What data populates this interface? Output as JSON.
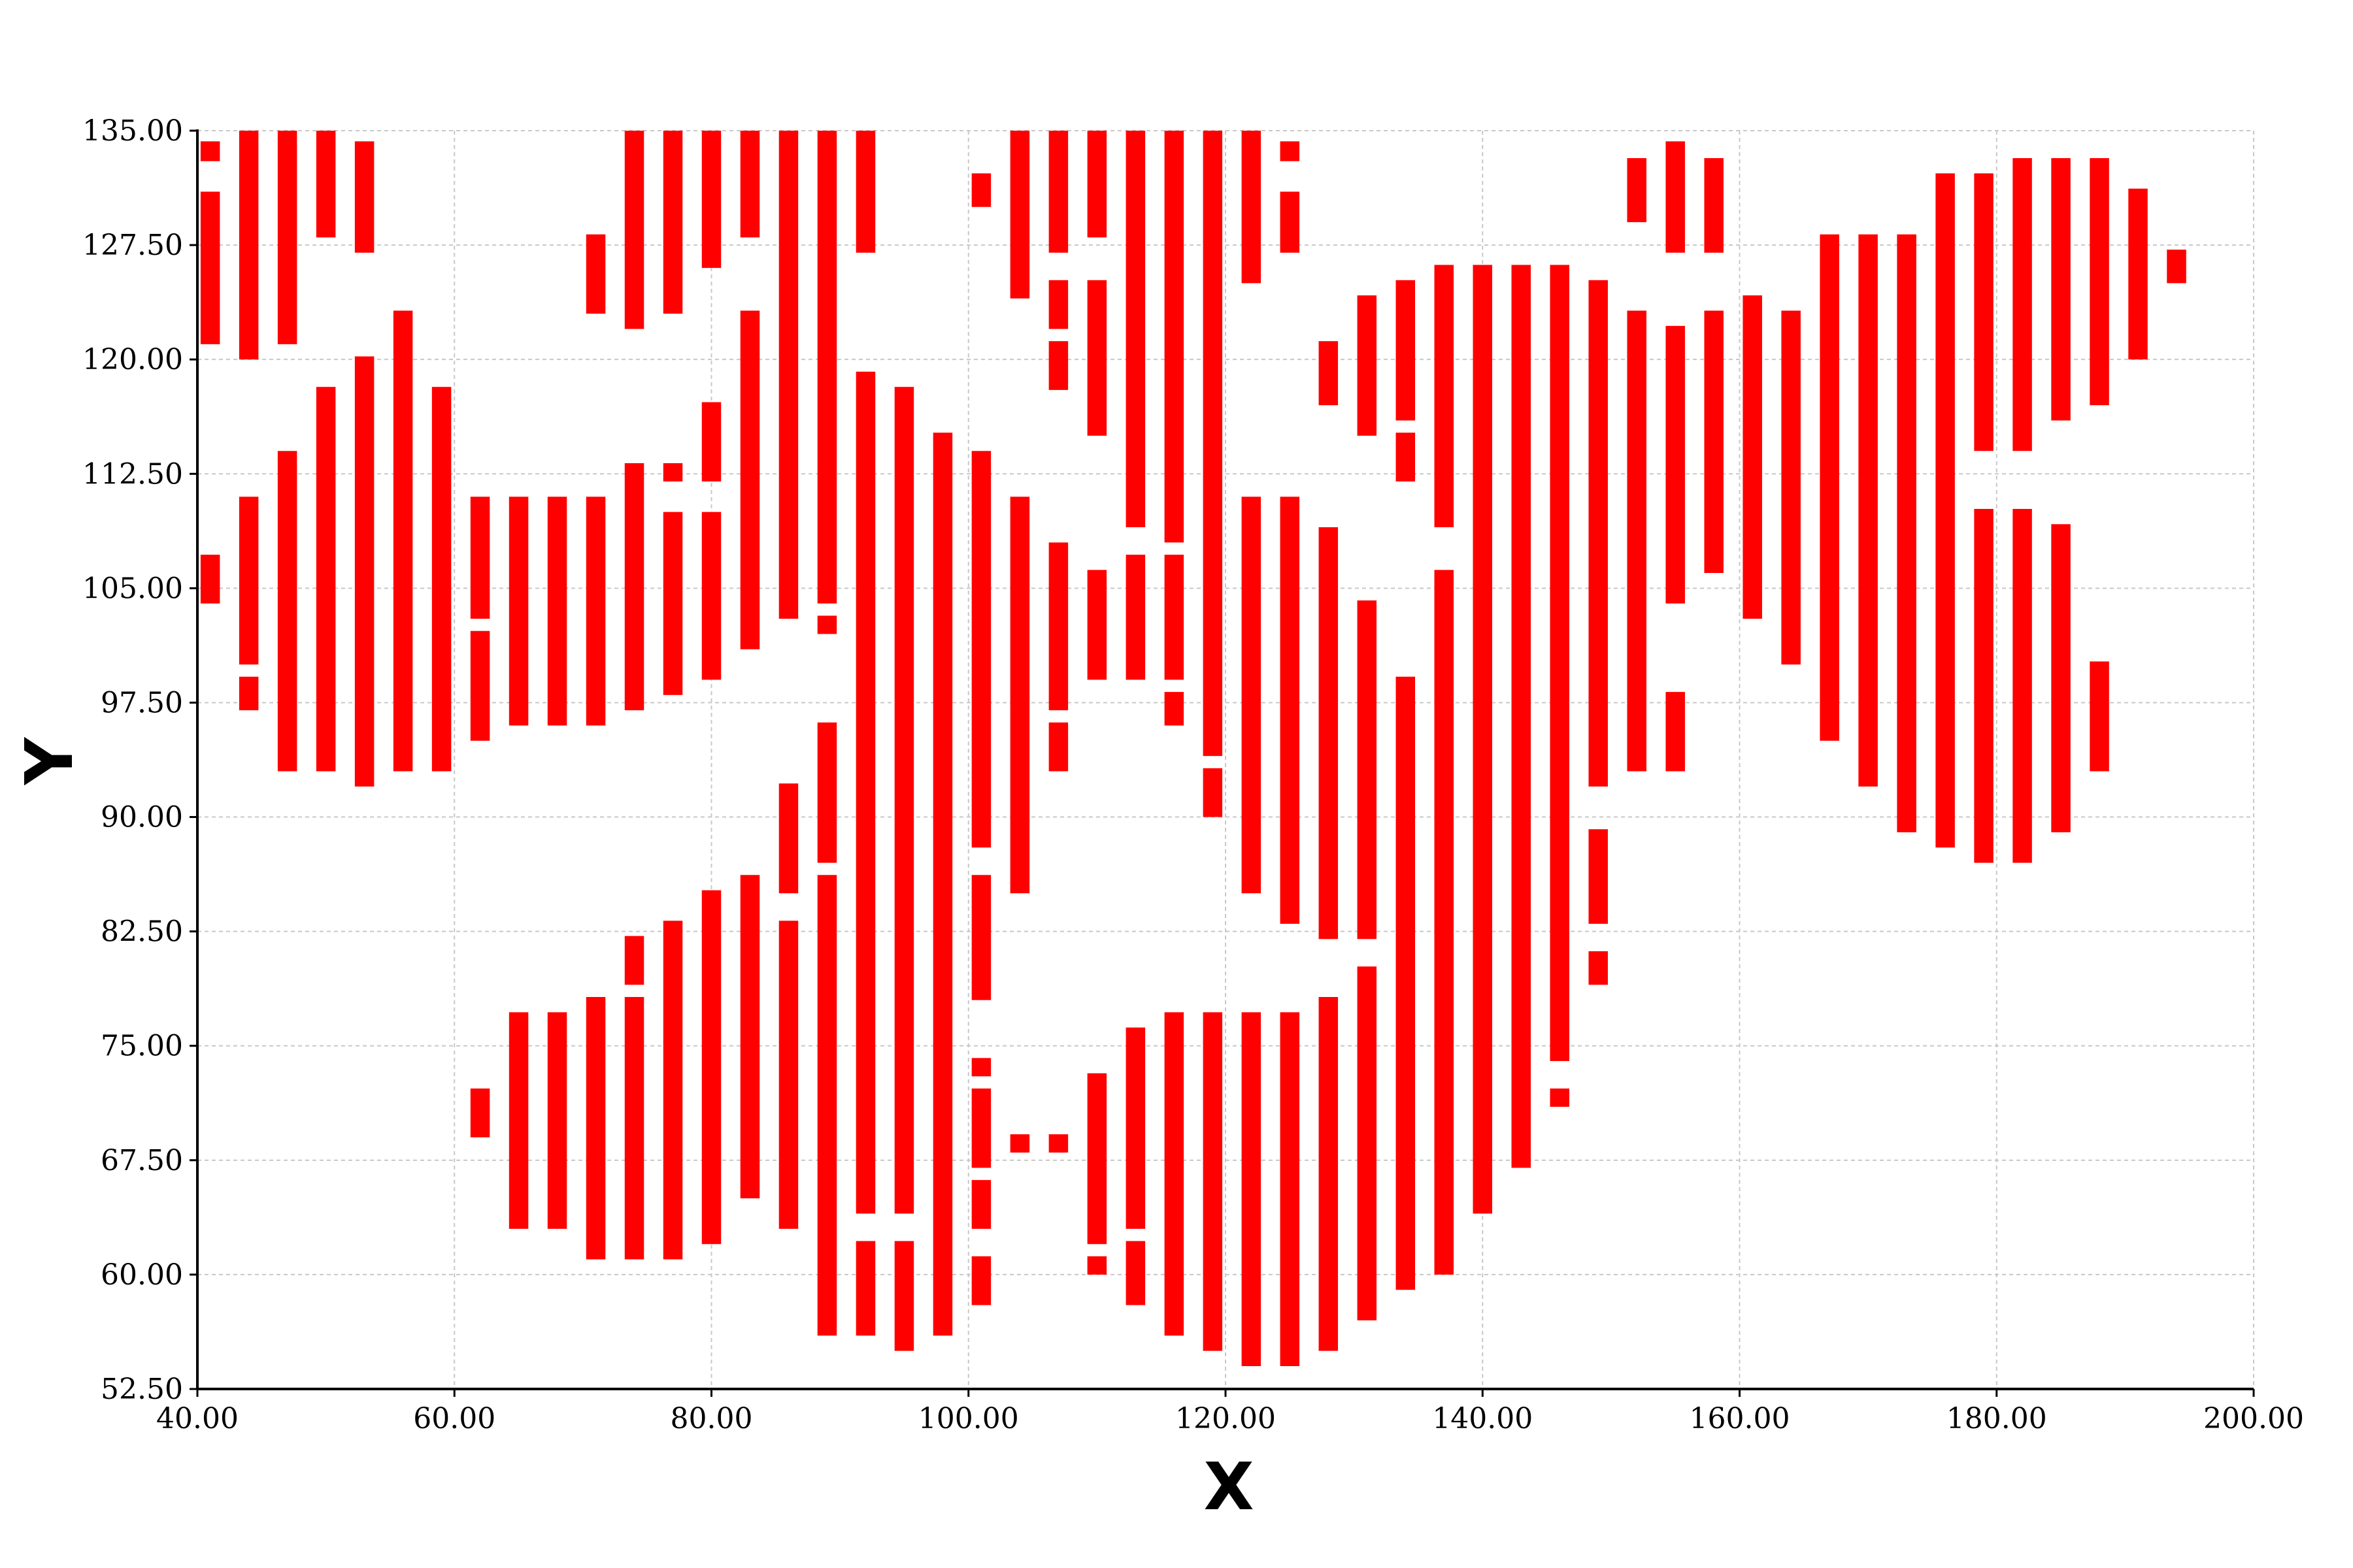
{
  "chart_data": {
    "type": "bar",
    "subtype": "floating-vertical-ranges",
    "title": "",
    "xlabel": "X",
    "ylabel": "Y",
    "xlim": [
      40,
      200
    ],
    "ylim": [
      52.5,
      135
    ],
    "x_ticks": [
      40,
      60,
      80,
      100,
      120,
      140,
      160,
      180,
      200
    ],
    "x_tick_labels": [
      "40.00",
      "60.00",
      "80.00",
      "100.00",
      "120.00",
      "140.00",
      "160.00",
      "180.00",
      "200.00"
    ],
    "y_ticks": [
      52.5,
      60,
      67.5,
      75,
      82.5,
      90,
      97.5,
      105,
      112.5,
      120,
      127.5,
      135
    ],
    "y_tick_labels": [
      "52.50",
      "60.00",
      "67.50",
      "75.00",
      "82.50",
      "90.00",
      "97.50",
      "105.00",
      "112.50",
      "120.00",
      "127.50",
      "135.00"
    ],
    "grid": true,
    "legend": "none",
    "color": "#ff0000",
    "bar_width_x": 1.5,
    "series": [
      {
        "values": [
          [
            41,
            133,
            134.3
          ],
          [
            41,
            121,
            131
          ],
          [
            41,
            104,
            107.2
          ],
          [
            44,
            120,
            135
          ],
          [
            44,
            100,
            111
          ],
          [
            44,
            97,
            99.2
          ],
          [
            47,
            121,
            135
          ],
          [
            47,
            93,
            114
          ],
          [
            50,
            128,
            135
          ],
          [
            50,
            93,
            118.2
          ],
          [
            53,
            127,
            134.3
          ],
          [
            53,
            92,
            120.2
          ],
          [
            56,
            93,
            123.2
          ],
          [
            59,
            93,
            118.2
          ],
          [
            62,
            103,
            111
          ],
          [
            62,
            95,
            102.2
          ],
          [
            62,
            69,
            72.2
          ],
          [
            65,
            96,
            111
          ],
          [
            65,
            63,
            77.2
          ],
          [
            68,
            96,
            111
          ],
          [
            68,
            63,
            77.2
          ],
          [
            71,
            123,
            128.2
          ],
          [
            71,
            96,
            111
          ],
          [
            71,
            61,
            78.2
          ],
          [
            74,
            122,
            135
          ],
          [
            74,
            97,
            113.2
          ],
          [
            74,
            79,
            82.2
          ],
          [
            74,
            61,
            78.2
          ],
          [
            77,
            123,
            135
          ],
          [
            77,
            112,
            113.2
          ],
          [
            77,
            98,
            110
          ],
          [
            77,
            61,
            83.2
          ],
          [
            80,
            126,
            135
          ],
          [
            80,
            112,
            117.2
          ],
          [
            80,
            99,
            110
          ],
          [
            80,
            62,
            85.2
          ],
          [
            83,
            128,
            135
          ],
          [
            83,
            101,
            123.2
          ],
          [
            83,
            65,
            86.2
          ],
          [
            86,
            103,
            135
          ],
          [
            86,
            85,
            92.2
          ],
          [
            86,
            63,
            83.2
          ],
          [
            89,
            104,
            135
          ],
          [
            89,
            102,
            103.2
          ],
          [
            89,
            87,
            96.2
          ],
          [
            89,
            56,
            86.2
          ],
          [
            92,
            127,
            135
          ],
          [
            92,
            64,
            119.2
          ],
          [
            92,
            56,
            62.2
          ],
          [
            95,
            64,
            118.2
          ],
          [
            95,
            55,
            62.2
          ],
          [
            98,
            56,
            115.2
          ],
          [
            101,
            130,
            132.2
          ],
          [
            101,
            88,
            114
          ],
          [
            101,
            78,
            86.2
          ],
          [
            101,
            73,
            74.2
          ],
          [
            101,
            67,
            72.2
          ],
          [
            101,
            63,
            66.2
          ],
          [
            101,
            58,
            61.2
          ],
          [
            104,
            124,
            135
          ],
          [
            104,
            85,
            111
          ],
          [
            104,
            68,
            69.2
          ],
          [
            107,
            127,
            135
          ],
          [
            107,
            122,
            125.2
          ],
          [
            107,
            118,
            121.2
          ],
          [
            107,
            97,
            108
          ],
          [
            107,
            93,
            96.2
          ],
          [
            107,
            68,
            69.2
          ],
          [
            110,
            128,
            135
          ],
          [
            110,
            115,
            125.2
          ],
          [
            110,
            99,
            106.2
          ],
          [
            110,
            62,
            73.2
          ],
          [
            110,
            60,
            61.2
          ],
          [
            113,
            109,
            135
          ],
          [
            113,
            99,
            107.2
          ],
          [
            113,
            63,
            76.2
          ],
          [
            113,
            58,
            62.2
          ],
          [
            116,
            108,
            135
          ],
          [
            116,
            99,
            107.2
          ],
          [
            116,
            96,
            98.2
          ],
          [
            116,
            56,
            77.2
          ],
          [
            119,
            94,
            135
          ],
          [
            119,
            90,
            93.2
          ],
          [
            119,
            55,
            77.2
          ],
          [
            122,
            125,
            135
          ],
          [
            122,
            85,
            111
          ],
          [
            122,
            54,
            77.2
          ],
          [
            125,
            133,
            134.3
          ],
          [
            125,
            127,
            131
          ],
          [
            125,
            83,
            111
          ],
          [
            125,
            54,
            77.2
          ],
          [
            128,
            117,
            121.2
          ],
          [
            128,
            82,
            109
          ],
          [
            128,
            55,
            78.2
          ],
          [
            131,
            115,
            124.2
          ],
          [
            131,
            82,
            104.2
          ],
          [
            131,
            57,
            80.2
          ],
          [
            134,
            116,
            125.2
          ],
          [
            134,
            112,
            115.2
          ],
          [
            134,
            59,
            99.2
          ],
          [
            137,
            109,
            126.2
          ],
          [
            137,
            60,
            106.2
          ],
          [
            140,
            64,
            126.2
          ],
          [
            143,
            67,
            126.2
          ],
          [
            146,
            74,
            126.2
          ],
          [
            146,
            71,
            72.2
          ],
          [
            149,
            92,
            125.2
          ],
          [
            149,
            83,
            89.2
          ],
          [
            149,
            79,
            81.2
          ],
          [
            152,
            129,
            133.2
          ],
          [
            152,
            93,
            123.2
          ],
          [
            155,
            127,
            134.3
          ],
          [
            155,
            104,
            122.2
          ],
          [
            155,
            93,
            98.2
          ],
          [
            158,
            127,
            133.2
          ],
          [
            158,
            106,
            123.2
          ],
          [
            161,
            103,
            124.2
          ],
          [
            164,
            100,
            123.2
          ],
          [
            167,
            95,
            128.2
          ],
          [
            170,
            92,
            128.2
          ],
          [
            173,
            89,
            128.2
          ],
          [
            176,
            88,
            132.2
          ],
          [
            179,
            114,
            132.2
          ],
          [
            179,
            87,
            110.2
          ],
          [
            182,
            114,
            133.2
          ],
          [
            182,
            87,
            110.2
          ],
          [
            185,
            116,
            133.2
          ],
          [
            185,
            89,
            109.2
          ],
          [
            188,
            117,
            133.2
          ],
          [
            188,
            93,
            100.2
          ],
          [
            191,
            120,
            131.2
          ],
          [
            194,
            125,
            127.2
          ]
        ]
      }
    ]
  }
}
